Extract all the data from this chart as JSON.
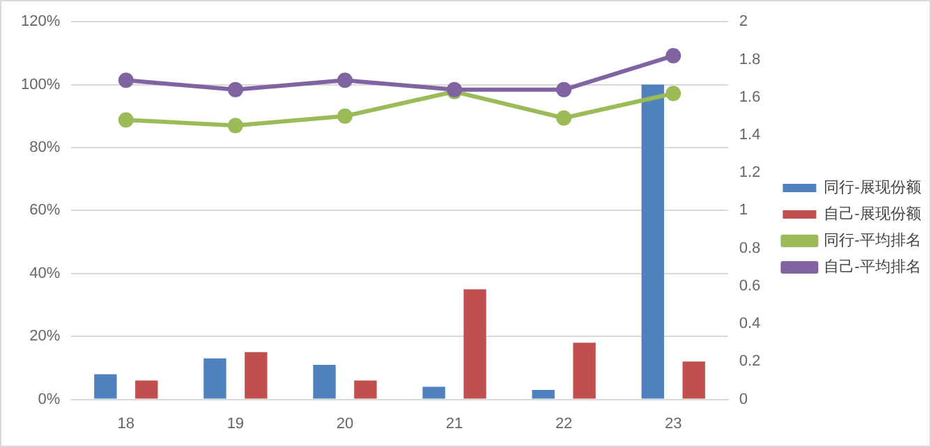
{
  "chart_data": {
    "type": "bar",
    "categories": [
      "18",
      "19",
      "20",
      "21",
      "22",
      "23"
    ],
    "series": [
      {
        "name": "同行-展现份额",
        "color": "#4f81bd",
        "values": [
          8,
          13,
          11,
          4,
          3,
          100
        ]
      },
      {
        "name": "自己-展现份额",
        "color": "#c0504d",
        "values": [
          6,
          15,
          6,
          35,
          18,
          12
        ]
      },
      {
        "name": "同行-平均排名",
        "type": "line",
        "axis": "y2",
        "color": "#9bbb59",
        "values": [
          1.48,
          1.45,
          1.5,
          1.63,
          1.49,
          1.62
        ]
      },
      {
        "name": "自己-平均排名",
        "type": "line",
        "axis": "y2",
        "color": "#8064a2",
        "values": [
          1.69,
          1.64,
          1.69,
          1.64,
          1.64,
          1.82
        ]
      }
    ],
    "ylim": [
      0,
      120
    ],
    "yticks": [
      {
        "value": 0,
        "label": "0%"
      },
      {
        "value": 20,
        "label": "20%"
      },
      {
        "value": 40,
        "label": "40%"
      },
      {
        "value": 60,
        "label": "60%"
      },
      {
        "value": 80,
        "label": "80%"
      },
      {
        "value": 100,
        "label": "100%"
      },
      {
        "value": 120,
        "label": "120%"
      }
    ],
    "y2lim": [
      0,
      2
    ],
    "y2ticks": [
      0,
      0.2,
      0.4,
      0.6,
      0.8,
      1,
      1.2,
      1.4,
      1.6,
      1.8,
      2
    ],
    "grid": "y",
    "legend": "right",
    "marker": "circle",
    "line_style": "solid"
  }
}
